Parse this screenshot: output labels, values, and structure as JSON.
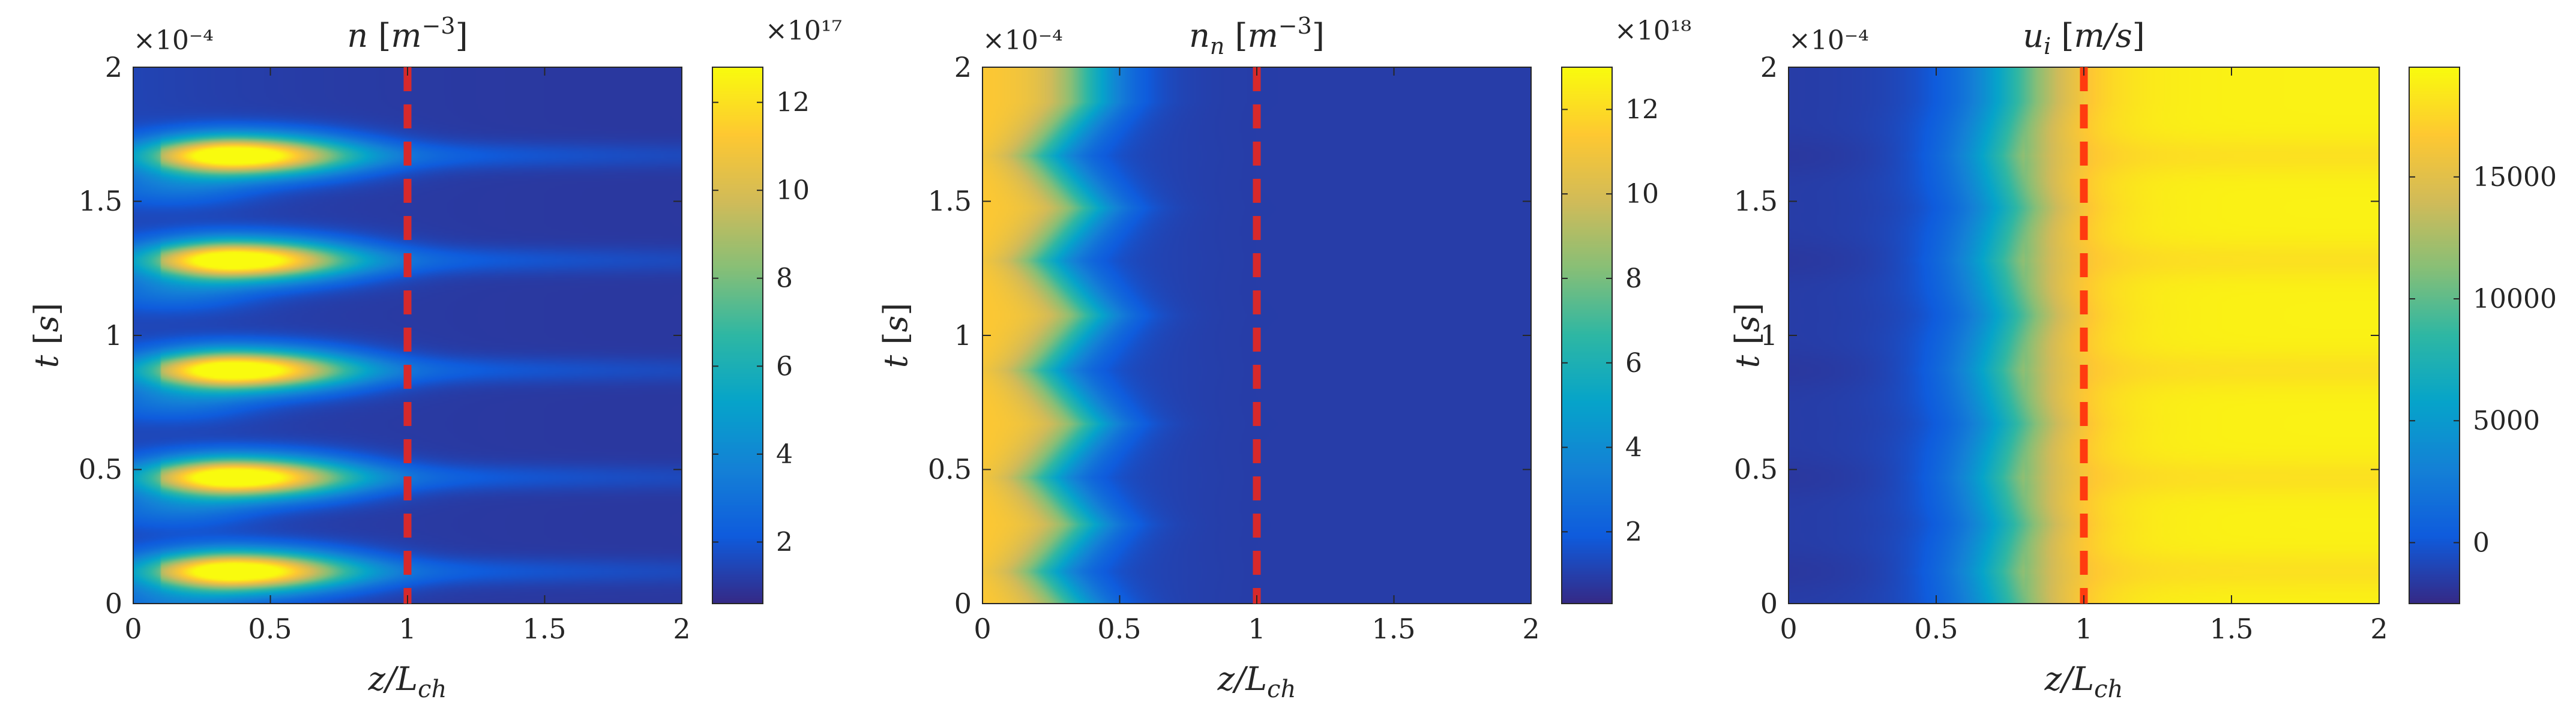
{
  "chart_data": [
    {
      "type": "heatmap",
      "title": "n [m⁻³]",
      "title_parts": [
        "n",
        " [",
        "m",
        "−3",
        "]"
      ],
      "xlabel": "z/L_ch",
      "ylabel": "t [s]",
      "xlim": [
        0,
        2
      ],
      "ylim": [
        0,
        2
      ],
      "y_multiplier": "×10⁻⁴",
      "x_ticks": [
        "0",
        "0.5",
        "1",
        "1.5",
        "2"
      ],
      "y_ticks": [
        "0",
        "0.5",
        "1",
        "1.5",
        "2"
      ],
      "colorbar": {
        "multiplier": "×10¹⁷",
        "range": [
          0.6,
          12.8
        ],
        "ticks": [
          2,
          4,
          6,
          8,
          10,
          12
        ],
        "tick_labels": [
          "2",
          "4",
          "6",
          "8",
          "10",
          "12"
        ]
      },
      "field": {
        "kind": "plasma_density",
        "peak_times": [
          0.12,
          0.47,
          0.87,
          1.28,
          1.67
        ],
        "peak_z": 0.37,
        "peak_value": 12.5,
        "background": 1.0
      },
      "reference_line": {
        "z": 1,
        "style": "dashed",
        "color": "#d7292b"
      }
    },
    {
      "type": "heatmap",
      "title": "n_n [m⁻³]",
      "title_parts": [
        "n",
        "n",
        " [",
        "m",
        "−3",
        "]"
      ],
      "xlabel": "z/L_ch",
      "ylabel": "t [s]",
      "xlim": [
        0,
        2
      ],
      "ylim": [
        0,
        2
      ],
      "y_multiplier": "×10⁻⁴",
      "x_ticks": [
        "0",
        "0.5",
        "1",
        "1.5",
        "2"
      ],
      "y_ticks": [
        "0",
        "0.5",
        "1",
        "1.5",
        "2"
      ],
      "colorbar": {
        "multiplier": "×10¹⁸",
        "range": [
          0.3,
          13.0
        ],
        "ticks": [
          2,
          4,
          6,
          8,
          10,
          12
        ],
        "tick_labels": [
          "2",
          "4",
          "6",
          "8",
          "10",
          "12"
        ]
      },
      "field": {
        "kind": "neutral_density",
        "inlet_value": 11.5,
        "front_z": 0.3,
        "front_wiggle": 0.08,
        "peak_times": [
          0.12,
          0.47,
          0.87,
          1.28,
          1.67
        ],
        "background": 0.9
      },
      "reference_line": {
        "z": 1,
        "style": "dashed",
        "color": "#d7292b"
      }
    },
    {
      "type": "heatmap",
      "title": "u_i [m/s]",
      "title_parts": [
        "u",
        "i",
        " [",
        "m/s",
        "]"
      ],
      "xlabel": "z/L_ch",
      "ylabel": "t [s]",
      "xlim": [
        0,
        2
      ],
      "ylim": [
        0,
        2
      ],
      "y_multiplier": "×10⁻⁴",
      "x_ticks": [
        "0",
        "0.5",
        "1",
        "1.5",
        "2"
      ],
      "y_ticks": [
        "0",
        "0.5",
        "1",
        "1.5",
        "2"
      ],
      "colorbar": {
        "range": [
          -2500,
          19500
        ],
        "ticks": [
          0,
          5000,
          10000,
          15000
        ],
        "tick_labels": [
          "0",
          "5000",
          "10000",
          "15000"
        ]
      },
      "field": {
        "kind": "ion_velocity",
        "inlet_value": -1500,
        "exit_value": 19000,
        "transition_z": 0.72,
        "peak_times": [
          0.12,
          0.47,
          0.87,
          1.28,
          1.67
        ]
      },
      "reference_line": {
        "z": 1,
        "style": "dashed",
        "color": "#ff3b0f"
      }
    }
  ],
  "colormap": [
    "#352a87",
    "#0f5cdd",
    "#1481d6",
    "#06a4ca",
    "#2eb7a4",
    "#87bf77",
    "#d1bb59",
    "#fec832",
    "#f9fb0e"
  ]
}
